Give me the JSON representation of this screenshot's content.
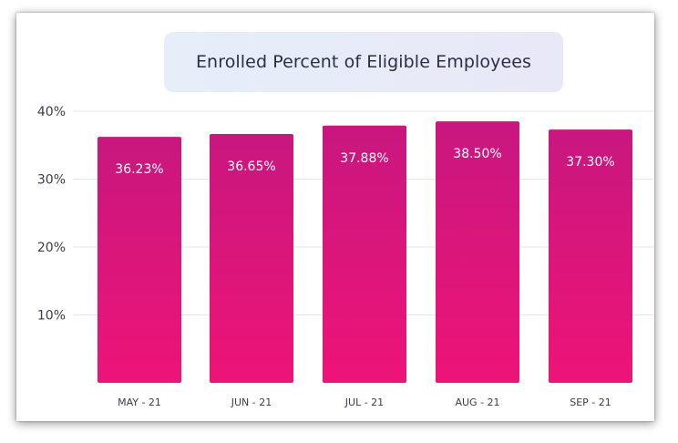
{
  "chart_data": {
    "type": "bar",
    "title": "Enrolled Percent of Eligible Employees",
    "categories": [
      "MAY - 21",
      "JUN - 21",
      "JUL - 21",
      "AUG - 21",
      "SEP - 21"
    ],
    "values": [
      36.23,
      36.65,
      37.88,
      38.5,
      37.3
    ],
    "data_labels": [
      "36.23%",
      "36.65%",
      "37.88%",
      "38.50%",
      "37.30%"
    ],
    "y_ticks": [
      "10%",
      "20%",
      "30%",
      "40%"
    ],
    "ylim": [
      0,
      40
    ],
    "grid": true,
    "xlabel": "",
    "ylabel": "",
    "colors": {
      "bar_top": "#c8177f",
      "bar_bottom": "#ee1477",
      "grid": "#e6e6ea"
    }
  }
}
